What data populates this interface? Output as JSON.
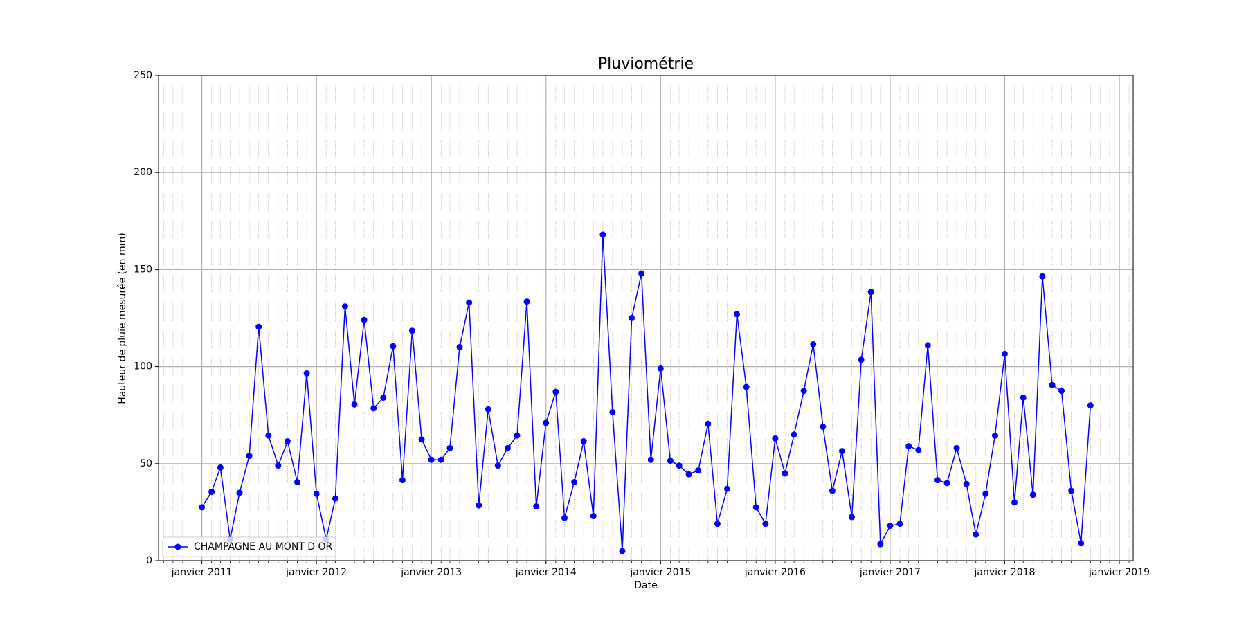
{
  "chart_data": {
    "type": "line",
    "title": "Pluviométrie",
    "x_label": "Date",
    "y_label": "Hauteur de pluie mesurée (en mm)",
    "x": [
      "2011-01",
      "2011-02",
      "2011-03",
      "2011-04",
      "2011-05",
      "2011-06",
      "2011-07",
      "2011-08",
      "2011-09",
      "2011-10",
      "2011-11",
      "2011-12",
      "2012-01",
      "2012-02",
      "2012-03",
      "2012-04",
      "2012-05",
      "2012-06",
      "2012-07",
      "2012-08",
      "2012-09",
      "2012-10",
      "2012-11",
      "2012-12",
      "2013-01",
      "2013-02",
      "2013-03",
      "2013-04",
      "2013-05",
      "2013-06",
      "2013-07",
      "2013-08",
      "2013-09",
      "2013-10",
      "2013-11",
      "2013-12",
      "2014-01",
      "2014-02",
      "2014-03",
      "2014-04",
      "2014-05",
      "2014-06",
      "2014-07",
      "2014-08",
      "2014-09",
      "2014-10",
      "2014-11",
      "2014-12",
      "2015-01",
      "2015-02",
      "2015-03",
      "2015-04",
      "2015-05",
      "2015-06",
      "2015-07",
      "2015-08",
      "2015-09",
      "2015-10",
      "2015-11",
      "2015-12",
      "2016-01",
      "2016-02",
      "2016-03",
      "2016-04",
      "2016-05",
      "2016-06",
      "2016-07",
      "2016-08",
      "2016-09",
      "2016-10",
      "2016-11",
      "2016-12",
      "2017-01",
      "2017-02",
      "2017-03",
      "2017-04",
      "2017-05",
      "2017-06",
      "2017-07",
      "2017-08",
      "2017-09",
      "2017-10",
      "2017-11",
      "2017-12",
      "2018-01",
      "2018-02",
      "2018-03",
      "2018-04",
      "2018-05",
      "2018-06",
      "2018-07",
      "2018-08",
      "2018-09",
      "2018-10"
    ],
    "series": [
      {
        "name": "CHAMPAGNE AU MONT D OR",
        "color": "#0000ff",
        "values": [
          27.5,
          35.5,
          48,
          11,
          35,
          54,
          120.5,
          64.5,
          49,
          61.5,
          40.5,
          96.5,
          34.5,
          11,
          32,
          131,
          80.5,
          124,
          78.5,
          84,
          110.5,
          41.5,
          118.5,
          62.5,
          52,
          52,
          58,
          110,
          133,
          28.5,
          78,
          49,
          58,
          64.5,
          133.5,
          28,
          71,
          87,
          22,
          40.5,
          61.5,
          23,
          168,
          76.5,
          5,
          125,
          148,
          52,
          99,
          51.5,
          49,
          44.5,
          46.5,
          70.5,
          19,
          37,
          127,
          89.5,
          27.5,
          19,
          63,
          45,
          65,
          87.5,
          111.5,
          69,
          36,
          56.5,
          22.5,
          103.5,
          138.5,
          8.5,
          18,
          19,
          59,
          57,
          111,
          41.5,
          40,
          58,
          39.5,
          13.5,
          34.5,
          64.5,
          106.5,
          30,
          84,
          34,
          146.5,
          90.5,
          87.5,
          36,
          9,
          80
        ]
      }
    ],
    "xlim": [
      "2010-08-16",
      "2019-02-14"
    ],
    "xticks": [
      {
        "value": "2011-01-01",
        "label": "janvier 2011"
      },
      {
        "value": "2012-01-01",
        "label": "janvier 2012"
      },
      {
        "value": "2013-01-01",
        "label": "janvier 2013"
      },
      {
        "value": "2014-01-01",
        "label": "janvier 2014"
      },
      {
        "value": "2015-01-01",
        "label": "janvier 2015"
      },
      {
        "value": "2016-01-01",
        "label": "janvier 2016"
      },
      {
        "value": "2017-01-01",
        "label": "janvier 2017"
      },
      {
        "value": "2018-01-01",
        "label": "janvier 2018"
      },
      {
        "value": "2019-01-01",
        "label": "janvier 2019"
      }
    ],
    "ylim": [
      0,
      250
    ],
    "yticks": [
      0,
      50,
      100,
      150,
      200,
      250
    ],
    "grid": true,
    "minor_grid": "monthly",
    "legend": "lower left"
  }
}
